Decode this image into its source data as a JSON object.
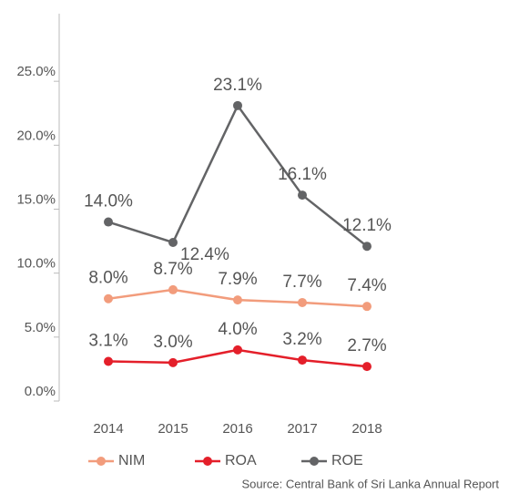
{
  "chart_data": {
    "type": "line",
    "categories": [
      "2014",
      "2015",
      "2016",
      "2017",
      "2018"
    ],
    "series": [
      {
        "name": "NIM",
        "color": "#f29c7c",
        "values": [
          8.0,
          8.7,
          7.9,
          7.7,
          7.4
        ],
        "value_labels": [
          "8.0%",
          "8.7%",
          "7.9%",
          "7.7%",
          "7.4%"
        ]
      },
      {
        "name": "ROA",
        "color": "#e41f2a",
        "values": [
          3.1,
          3.0,
          4.0,
          3.2,
          2.7
        ],
        "value_labels": [
          "3.1%",
          "3.0%",
          "4.0%",
          "3.2%",
          "2.7%"
        ]
      },
      {
        "name": "ROE",
        "color": "#636466",
        "values": [
          14.0,
          12.4,
          23.1,
          16.1,
          12.1
        ],
        "value_labels": [
          "14.0%",
          "12.4%",
          "23.1%",
          "16.1%",
          "12.1%"
        ]
      }
    ],
    "ylim": [
      0,
      30
    ],
    "yticks": [
      {
        "value": 0,
        "label": "0.0%"
      },
      {
        "value": 5,
        "label": "5.0%"
      },
      {
        "value": 10,
        "label": "10.0%"
      },
      {
        "value": 15,
        "label": "15.0%"
      },
      {
        "value": 20,
        "label": "20.0%"
      },
      {
        "value": 25,
        "label": "25.0%"
      }
    ],
    "legend": "bottom",
    "source": "Source: Central Bank of Sri Lanka  Annual Report"
  }
}
